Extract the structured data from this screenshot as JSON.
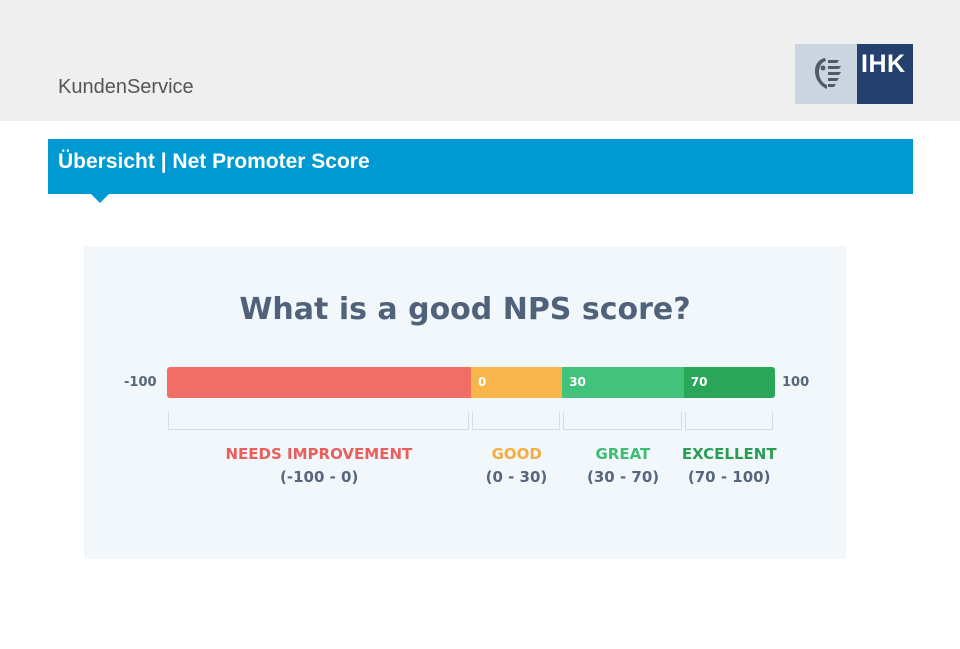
{
  "header": {
    "app_title": "KundenService",
    "logo_text": "IHK"
  },
  "section": {
    "title": "Übersicht | Net Promoter Score"
  },
  "figure": {
    "title": "What is a good NPS score?",
    "scale_min": "-100",
    "scale_max": "100",
    "segments": [
      {
        "marker": "",
        "name": "NEEDS IMPROVEMENT",
        "range": "(-100 - 0)",
        "from": -100,
        "to": 0,
        "color": "#ef6f67",
        "label_color": "#e85f5b"
      },
      {
        "marker": "0",
        "name": "GOOD",
        "range": "(0 - 30)",
        "from": 0,
        "to": 30,
        "color": "#f7b64c",
        "label_color": "#f3ae3f"
      },
      {
        "marker": "30",
        "name": "GREAT",
        "range": "(30 - 70)",
        "from": 30,
        "to": 70,
        "color": "#42c27a",
        "label_color": "#3fbd72"
      },
      {
        "marker": "70",
        "name": "EXCELLENT",
        "range": "(70 - 100)",
        "from": 70,
        "to": 100,
        "color": "#2aa659",
        "label_color": "#2a9d55"
      }
    ]
  }
}
